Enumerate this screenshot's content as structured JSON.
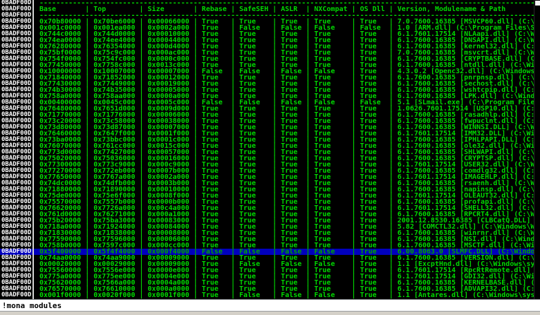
{
  "colors": {
    "background": "#000000",
    "text_green": "#00D800",
    "highlight_bg": "#0000BE",
    "highlight_text": "#00A800",
    "marker_white": "#FFFFFF",
    "gutter_line": "#D8D8D8"
  },
  "terminal": {
    "marker": "0BADF00D",
    "columns": [
      "Base",
      "Top",
      "Size",
      "Rebase",
      "SafeSEH",
      "ASLR",
      "NXCompat",
      "OS Dll",
      "Version, Modulename & Path"
    ],
    "highlighted_row_index": 37,
    "rows": [
      {
        "base": "0x70b80000",
        "top": "0x70be6000",
        "size": "0x00066000",
        "rebase": "True",
        "safeseh": "True",
        "aslr": "True",
        "nxcompat": "True",
        "os_dll": "True",
        "version": "7.0.7600.16385 [MSVCP60.dll] (C:\\W"
      },
      {
        "base": "0x001c0000",
        "top": "0x001ea000",
        "size": "0x0002a000",
        "rebase": "True",
        "safeseh": "False",
        "aslr": "False",
        "nxcompat": "False",
        "os_dll": "False",
        "version": "1.0 [ARM.dll] (C:\\Program Files\\SL"
      },
      {
        "base": "0x744c0000",
        "top": "0x744d0000",
        "size": "0x00010000",
        "rebase": "True",
        "safeseh": "True",
        "aslr": "True",
        "nxcompat": "True",
        "os_dll": "True",
        "version": "6.1.7601.17514 [NLAapi.dll] (C:\\Wi"
      },
      {
        "base": "0x74ea0000",
        "top": "0x74ee4000",
        "size": "0x00044000",
        "rebase": "True",
        "safeseh": "True",
        "aslr": "True",
        "nxcompat": "True",
        "os_dll": "True",
        "version": "6.1.7600.16385 [DNSAPI.dll] (C:\\Wi"
      },
      {
        "base": "0x76280000",
        "top": "0x76354000",
        "size": "0x000d4000",
        "rebase": "True",
        "safeseh": "True",
        "aslr": "True",
        "nxcompat": "True",
        "os_dll": "True",
        "version": "6.1.7600.16385 [kernel32.dll] (C:\\"
      },
      {
        "base": "0x75bf0000",
        "top": "0x75c9c000",
        "size": "0x000ac000",
        "rebase": "True",
        "safeseh": "True",
        "aslr": "True",
        "nxcompat": "True",
        "os_dll": "True",
        "version": "7.0.7600.16385 [msvcrt.dll] (C:\\Wi"
      },
      {
        "base": "0x754f0000",
        "top": "0x754fc000",
        "size": "0x0000c000",
        "rebase": "True",
        "safeseh": "True",
        "aslr": "True",
        "nxcompat": "True",
        "os_dll": "True",
        "version": "6.1.7600.16385 [CRYPTBASE.dll] (C:"
      },
      {
        "base": "0x77450000",
        "top": "0x7758c000",
        "size": "0x0013c000",
        "rebase": "True",
        "safeseh": "True",
        "aslr": "True",
        "nxcompat": "True",
        "os_dll": "True",
        "version": "6.1.7600.16385 [ntdll.dll] (C:\\Win"
      },
      {
        "base": "0x10000000",
        "top": "0x10007000",
        "size": "0x00007000",
        "rebase": "False",
        "safeseh": "False",
        "aslr": "False",
        "nxcompat": "False",
        "os_dll": "True",
        "version": "4.3.0.2 [Openc32.dll] (C:\\Windows\\"
      },
      {
        "base": "0x71840000",
        "top": "0x71852000",
        "size": "0x00012000",
        "rebase": "True",
        "safeseh": "True",
        "aslr": "True",
        "nxcompat": "True",
        "os_dll": "True",
        "version": "6.1.7600.16385 [pnrpnsp.dll] (C:\\W"
      },
      {
        "base": "0x77430000",
        "top": "0x77449000",
        "size": "0x00019000",
        "rebase": "True",
        "safeseh": "True",
        "aslr": "True",
        "nxcompat": "True",
        "os_dll": "True",
        "version": "6.1.7600.16385 [sechost.dll] (C:\\W"
      },
      {
        "base": "0x74b30000",
        "top": "0x74b35000",
        "size": "0x00005000",
        "rebase": "True",
        "safeseh": "True",
        "aslr": "True",
        "nxcompat": "True",
        "os_dll": "True",
        "version": "6.1.7600.16385 [wshtcpip.dll] (C:\\"
      },
      {
        "base": "0x758a0000",
        "top": "0x758aa000",
        "size": "0x0000a000",
        "rebase": "True",
        "safeseh": "True",
        "aslr": "True",
        "nxcompat": "True",
        "os_dll": "True",
        "version": "6.1.7600.16385 [LPK.dll] (C:\\Windo"
      },
      {
        "base": "0x00400000",
        "top": "0x0045c000",
        "size": "0x0005c000",
        "rebase": "False",
        "safeseh": "False",
        "aslr": "False",
        "nxcompat": "False",
        "os_dll": "False",
        "version": "5.1 [SLmail.exe] (C:\\Program Files"
      },
      {
        "base": "0x76480000",
        "top": "0x7651d000",
        "size": "0x0009d000",
        "rebase": "True",
        "safeseh": "True",
        "aslr": "True",
        "nxcompat": "True",
        "os_dll": "True",
        "version": "1.0626.7601.17514 [USP10.dll] (C:\\"
      },
      {
        "base": "0x71770000",
        "top": "0x71776000",
        "size": "0x00006000",
        "rebase": "True",
        "safeseh": "True",
        "aslr": "True",
        "nxcompat": "True",
        "os_dll": "True",
        "version": "6.1.7600.16385 [rasadhlp.dll] (C:\\"
      },
      {
        "base": "0x73c20000",
        "top": "0x73c58000",
        "size": "0x00038000",
        "rebase": "True",
        "safeseh": "True",
        "aslr": "True",
        "nxcompat": "True",
        "os_dll": "True",
        "version": "6.1.7600.16385 [fwpuclnt.dll] (C:\\"
      },
      {
        "base": "0x73d80000",
        "top": "0x73d87000",
        "size": "0x00007000",
        "rebase": "True",
        "safeseh": "True",
        "aslr": "True",
        "nxcompat": "True",
        "os_dll": "True",
        "version": "6.1.7600.16385 [WINNSI.DLL] (C:\\Wi"
      },
      {
        "base": "0x76460000",
        "top": "0x7647f000",
        "size": "0x0001f000",
        "rebase": "True",
        "safeseh": "True",
        "aslr": "True",
        "nxcompat": "True",
        "os_dll": "True",
        "version": "6.1.7601.17514 [IMM32.DLL] (C:\\Win"
      },
      {
        "base": "0x73ba0000",
        "top": "0x73bbc000",
        "size": "0x0001c000",
        "rebase": "True",
        "safeseh": "True",
        "aslr": "True",
        "nxcompat": "True",
        "os_dll": "True",
        "version": "6.1.7600.16385 [IPHLPAPI.DLL] (C:\\"
      },
      {
        "base": "0x76070000",
        "top": "0x761cc000",
        "size": "0x0015c000",
        "rebase": "True",
        "safeseh": "True",
        "aslr": "True",
        "nxcompat": "True",
        "os_dll": "True",
        "version": "6.1.7600.16385 [ole32.dll] (C:\\Win"
      },
      {
        "base": "0x773d0000",
        "top": "0x77427000",
        "size": "0x00057000",
        "rebase": "True",
        "safeseh": "True",
        "aslr": "True",
        "nxcompat": "True",
        "os_dll": "True",
        "version": "6.1.7600.16385 [SHLWAPI.dll] (C:\\W"
      },
      {
        "base": "0x75020000",
        "top": "0x75036000",
        "size": "0x00016000",
        "rebase": "True",
        "safeseh": "True",
        "aslr": "True",
        "nxcompat": "True",
        "os_dll": "True",
        "version": "6.1.7600.16385 [CRYPTSP.dll] (C:\\W"
      },
      {
        "base": "0x77300000",
        "top": "0x773c9000",
        "size": "0x000c9000",
        "rebase": "True",
        "safeseh": "True",
        "aslr": "True",
        "nxcompat": "True",
        "os_dll": "True",
        "version": "6.1.7601.17514 [USER32.dll] (C:\\Wi"
      },
      {
        "base": "0x77270000",
        "top": "0x772eb000",
        "size": "0x0007b000",
        "rebase": "True",
        "safeseh": "True",
        "aslr": "True",
        "nxcompat": "True",
        "os_dll": "True",
        "version": "6.1.7600.16385 [comdlg32.dll] (C:\\"
      },
      {
        "base": "0x77650000",
        "top": "0x7767a000",
        "size": "0x0002a000",
        "rebase": "True",
        "safeseh": "True",
        "aslr": "True",
        "nxcompat": "True",
        "os_dll": "True",
        "version": "6.1.7601.17514 [IMAGEHLP.dll] (C:\\"
      },
      {
        "base": "0x74dc0000",
        "top": "0x74dfb000",
        "size": "0x0003b000",
        "rebase": "True",
        "safeseh": "True",
        "aslr": "True",
        "nxcompat": "True",
        "os_dll": "True",
        "version": "6.1.7600.16385 [rsaenh.dll] (C:\\Wi"
      },
      {
        "base": "0x71880000",
        "top": "0x71890000",
        "size": "0x00010000",
        "rebase": "True",
        "safeseh": "True",
        "aslr": "True",
        "nxcompat": "True",
        "os_dll": "True",
        "version": "6.1.7600.16385 [napinsp.dll] (C:\\W"
      },
      {
        "base": "0x75de0000",
        "top": "0x75e6f000",
        "size": "0x0008f000",
        "rebase": "True",
        "safeseh": "True",
        "aslr": "True",
        "nxcompat": "True",
        "os_dll": "True",
        "version": "6.1.7601.17514 [OLEAUT32.dll] (C:\\"
      },
      {
        "base": "0x75570000",
        "top": "0x7557b000",
        "size": "0x0000b000",
        "rebase": "True",
        "safeseh": "True",
        "aslr": "True",
        "nxcompat": "True",
        "os_dll": "True",
        "version": "6.1.7600.16385 [profapi.dll] (C:\\W"
      },
      {
        "base": "0x76620000",
        "top": "0x7726a000",
        "size": "0x00c4a000",
        "rebase": "True",
        "safeseh": "True",
        "aslr": "True",
        "nxcompat": "True",
        "os_dll": "True",
        "version": "6.1.7601.17514 [SHELL32.dll] (C:\\W"
      },
      {
        "base": "0x761d0000",
        "top": "0x76271000",
        "size": "0x000a1000",
        "rebase": "True",
        "safeseh": "True",
        "aslr": "True",
        "nxcompat": "True",
        "os_dll": "True",
        "version": "6.1.7600.16385 [RPCRT4.dll] (C:\\Wi"
      },
      {
        "base": "0x75b20000",
        "top": "0x75ba3000",
        "size": "0x00083000",
        "rebase": "True",
        "safeseh": "True",
        "aslr": "True",
        "nxcompat": "True",
        "os_dll": "True",
        "version": "2001.12.8530.16385 [CLBCatQ.DLL] ("
      },
      {
        "base": "0x718a0000",
        "top": "0x71924000",
        "size": "0x00084000",
        "rebase": "True",
        "safeseh": "True",
        "aslr": "True",
        "nxcompat": "True",
        "os_dll": "True",
        "version": "5.82 [COMCTL32.dll] (C:\\Windows\\Wi"
      },
      {
        "base": "0x71830000",
        "top": "0x71838000",
        "size": "0x00008000",
        "rebase": "True",
        "safeseh": "True",
        "aslr": "True",
        "nxcompat": "True",
        "os_dll": "True",
        "version": "6.1.7600.16385 [winrnr.dll] (C:\\Wi"
      },
      {
        "base": "0x77590000",
        "top": "0x77596000",
        "size": "0x00006000",
        "rebase": "True",
        "safeseh": "True",
        "aslr": "True",
        "nxcompat": "True",
        "os_dll": "True",
        "version": "6.1.7600.16385 [NSI.dll] (C:\\Windo"
      },
      {
        "base": "0x758b0000",
        "top": "0x7597c000",
        "size": "0x000cc000",
        "rebase": "True",
        "safeseh": "True",
        "aslr": "True",
        "nxcompat": "True",
        "os_dll": "True",
        "version": "6.1.7600.16385 [MSCTF.dll] (C:\\Win"
      },
      {
        "base": "0x5f400000",
        "top": "0x5f4f4000",
        "size": "0x000f4000",
        "rebase": "False",
        "safeseh": "False",
        "aslr": "False",
        "nxcompat": "False",
        "os_dll": "True",
        "version": "6.00.8063.0 [SLMFC.DLL] (C:\\Window"
      },
      {
        "base": "0x74aa0000",
        "top": "0x74aa9000",
        "size": "0x00009000",
        "rebase": "True",
        "safeseh": "True",
        "aslr": "True",
        "nxcompat": "True",
        "os_dll": "True",
        "version": "6.1.7600.16385 [VERSION.dll] (C:\\W"
      },
      {
        "base": "0x00020000",
        "top": "0x00029000",
        "size": "0x00009000",
        "rebase": "True",
        "safeseh": "False",
        "aslr": "False",
        "nxcompat": "False",
        "os_dll": "True",
        "version": "1.1 [ExcptHnd.dll] (C:\\Windows\\sys"
      },
      {
        "base": "0x75560000",
        "top": "0x7556e000",
        "size": "0x0000e000",
        "rebase": "True",
        "safeseh": "True",
        "aslr": "True",
        "nxcompat": "True",
        "os_dll": "True",
        "version": "6.1.7601.17514 [RpcRtRemote.dll] ("
      },
      {
        "base": "0x775a0000",
        "top": "0x775ee000",
        "size": "0x0004e000",
        "rebase": "True",
        "safeseh": "True",
        "aslr": "True",
        "nxcompat": "True",
        "os_dll": "True",
        "version": "6.1.7601.17514 [GDI32.dll] (C:\\Win"
      },
      {
        "base": "0x75620000",
        "top": "0x7566a000",
        "size": "0x0004a000",
        "rebase": "True",
        "safeseh": "True",
        "aslr": "True",
        "nxcompat": "True",
        "os_dll": "True",
        "version": "6.1.7600.16385 [KERNELBASE.dll] (C"
      },
      {
        "base": "0x76570000",
        "top": "0x76610000",
        "size": "0x000a0000",
        "rebase": "True",
        "safeseh": "True",
        "aslr": "True",
        "nxcompat": "True",
        "os_dll": "True",
        "version": "6.1.7600.16385 [ADVAPI32.dll] (C:\\"
      },
      {
        "base": "0x001f0000",
        "top": "0x0020f000",
        "size": "0x0001f000",
        "rebase": "True",
        "safeseh": "False",
        "aslr": "False",
        "nxcompat": "False",
        "os_dll": "True",
        "version": "1.1 [Antares.dll] (C:\\Windows\\syst"
      }
    ]
  },
  "command_bar": {
    "value": "!mona modules"
  }
}
